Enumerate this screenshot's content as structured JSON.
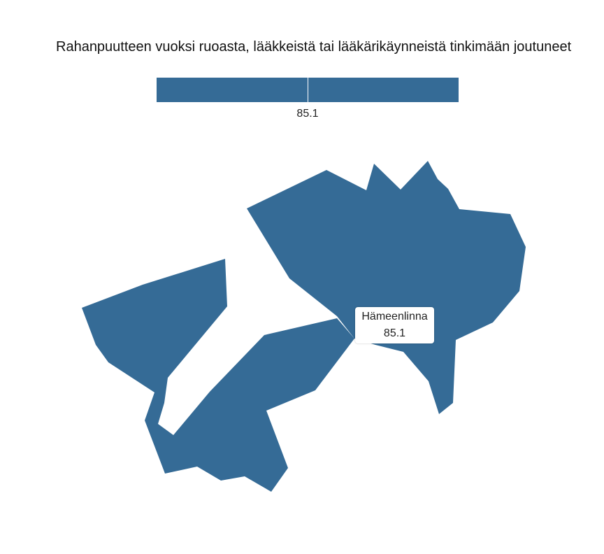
{
  "map": {
    "title": "Rahanpuutteen vuoksi ruoasta, lääkkeistä tai lääkärikäynneistä tinkimään joutuneet",
    "fill_color": "#356b96",
    "legend": {
      "value_label": "85.1"
    },
    "regions": [
      {
        "name": "Hämeenlinna",
        "value": 85.1,
        "value_label": "85.1"
      }
    ]
  }
}
